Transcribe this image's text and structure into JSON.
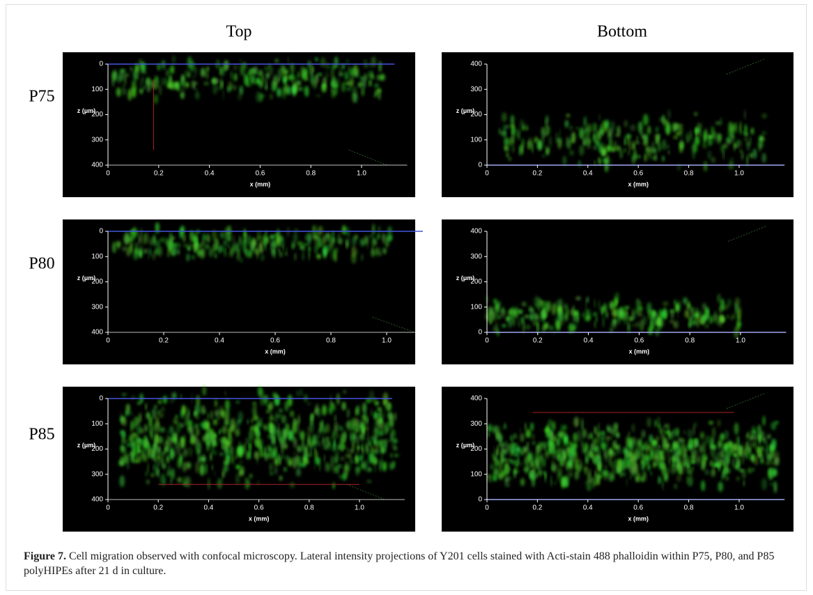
{
  "column_titles": [
    "Top",
    "Bottom"
  ],
  "row_labels": [
    "P75",
    "P80",
    "P85"
  ],
  "axes": {
    "xlabel": "x (mm)",
    "ylabel": "z (μm)",
    "xticks": [
      0,
      0.2,
      0.4,
      0.6,
      0.8,
      {
        "value": 1,
        "label": "1.0"
      }
    ],
    "yticks": [
      0,
      100,
      200,
      300,
      400
    ]
  },
  "caption": {
    "label": "Figure 7.",
    "text": "Cell migration observed with confocal microscopy. Lateral intensity projections of Y201 cells stained with Acti-stain 488 phalloidin within P75, P80, and P85 polyHIPEs after 21 d in culture."
  }
}
